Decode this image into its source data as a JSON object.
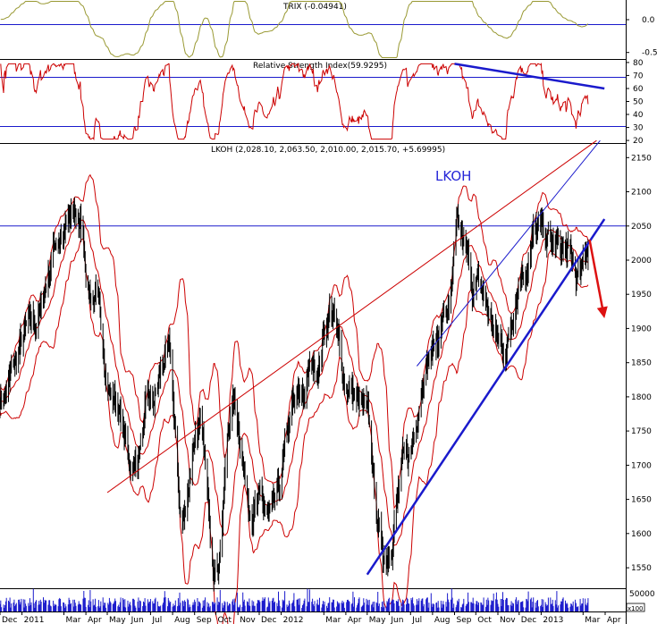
{
  "chart_data": {
    "type": "candlestick",
    "ticker_label": "LKOH",
    "panels": {
      "trix": {
        "title": "TRIX (-0.04941)",
        "y_ticks": [
          0.0,
          -0.5
        ],
        "y_tick_labels": [
          "0.0",
          "-0.5"
        ],
        "ylim": [
          -0.6,
          0.3
        ],
        "reference_line": 0.0
      },
      "rsi": {
        "title": "Relative Strength Index(59.9295)",
        "y_ticks": [
          80,
          70,
          60,
          50,
          40,
          30,
          20
        ],
        "y_tick_labels": [
          "80",
          "70",
          "60",
          "50",
          "40",
          "30",
          "20"
        ],
        "ylim": [
          18,
          82
        ],
        "reference_lines": [
          70,
          30
        ],
        "trendline": {
          "from": [
            "2012-09-01",
            79
          ],
          "to": [
            "2013-03-31",
            60
          ]
        }
      },
      "price": {
        "title": "LKOH (2,028.10, 2,063.50, 2,010.00, 2,015.70, +5.69995)",
        "y_ticks": [
          2150,
          2100,
          2050,
          2000,
          1950,
          1900,
          1850,
          1800,
          1750,
          1700,
          1650,
          1600,
          1550
        ],
        "y_tick_labels": [
          "2150",
          "2100",
          "2050",
          "2000",
          "1950",
          "1900",
          "1850",
          "1800",
          "1750",
          "1700",
          "1650",
          "1600",
          "1550"
        ],
        "ylim": [
          1520,
          2170
        ],
        "horizontal_line": 2050,
        "trendlines": [
          {
            "name": "red-resistance",
            "from": [
              "2011-05-01",
              1660
            ],
            "to": [
              "2013-03-20",
              2175
            ]
          },
          {
            "name": "blue-support",
            "from": [
              "2012-05-01",
              1540
            ],
            "to": [
              "2013-03-31",
              2060
            ]
          },
          {
            "name": "blue-channel-upper",
            "from": [
              "2012-07-10",
              1845
            ],
            "to": [
              "2013-03-25",
              2175
            ]
          }
        ],
        "arrow": {
          "from": [
            "2013-03-10",
            2030
          ],
          "to": [
            "2013-03-31",
            1915
          ]
        },
        "key_points": [
          {
            "date": "2010-12-01",
            "close": 1800
          },
          {
            "date": "2011-01-15",
            "close": 1900
          },
          {
            "date": "2011-02-25",
            "close": 2040
          },
          {
            "date": "2011-03-20",
            "close": 2060
          },
          {
            "date": "2011-04-10",
            "close": 1950
          },
          {
            "date": "2011-05-10",
            "close": 1800
          },
          {
            "date": "2011-06-05",
            "close": 1700
          },
          {
            "date": "2011-07-01",
            "close": 1780
          },
          {
            "date": "2011-07-25",
            "close": 1860
          },
          {
            "date": "2011-08-15",
            "close": 1620
          },
          {
            "date": "2011-09-05",
            "close": 1760
          },
          {
            "date": "2011-10-01",
            "close": 1560
          },
          {
            "date": "2011-10-25",
            "close": 1790
          },
          {
            "date": "2011-11-20",
            "close": 1650
          },
          {
            "date": "2011-12-20",
            "close": 1620
          },
          {
            "date": "2012-01-20",
            "close": 1780
          },
          {
            "date": "2012-02-20",
            "close": 1850
          },
          {
            "date": "2012-03-10",
            "close": 1930
          },
          {
            "date": "2012-04-01",
            "close": 1820
          },
          {
            "date": "2012-04-25",
            "close": 1780
          },
          {
            "date": "2012-05-25",
            "close": 1570
          },
          {
            "date": "2012-06-25",
            "close": 1700
          },
          {
            "date": "2012-07-25",
            "close": 1860
          },
          {
            "date": "2012-08-25",
            "close": 1930
          },
          {
            "date": "2012-09-05",
            "close": 2030
          },
          {
            "date": "2012-10-01",
            "close": 1960
          },
          {
            "date": "2012-11-10",
            "close": 1870
          },
          {
            "date": "2012-12-05",
            "close": 1990
          },
          {
            "date": "2012-12-25",
            "close": 2040
          },
          {
            "date": "2013-02-01",
            "close": 2010
          },
          {
            "date": "2013-02-25",
            "close": 1970
          },
          {
            "date": "2013-03-08",
            "close": 2015
          }
        ]
      },
      "volume": {
        "y_tick_labels": [
          "50000",
          "x100"
        ]
      }
    },
    "x_axis": {
      "range": [
        "2010-12-01",
        "2013-04-30"
      ],
      "ticks": [
        {
          "label": "Dec",
          "date": "2010-12-01"
        },
        {
          "label": "2011",
          "date": "2011-01-01"
        },
        {
          "label": "Mar",
          "date": "2011-03-01"
        },
        {
          "label": "Apr",
          "date": "2011-04-01"
        },
        {
          "label": "May",
          "date": "2011-05-01"
        },
        {
          "label": "Jun",
          "date": "2011-06-01"
        },
        {
          "label": "Jul",
          "date": "2011-07-01"
        },
        {
          "label": "Aug",
          "date": "2011-08-01"
        },
        {
          "label": "Sep",
          "date": "2011-09-01"
        },
        {
          "label": "Oct",
          "date": "2011-10-01"
        },
        {
          "label": "Nov",
          "date": "2011-11-01"
        },
        {
          "label": "Dec",
          "date": "2011-12-01"
        },
        {
          "label": "2012",
          "date": "2012-01-01"
        },
        {
          "label": "Mar",
          "date": "2012-03-01"
        },
        {
          "label": "Apr",
          "date": "2012-04-01"
        },
        {
          "label": "May",
          "date": "2012-05-01"
        },
        {
          "label": "Jun",
          "date": "2012-06-01"
        },
        {
          "label": "Jul",
          "date": "2012-07-01"
        },
        {
          "label": "Aug",
          "date": "2012-08-01"
        },
        {
          "label": "Sep",
          "date": "2012-09-01"
        },
        {
          "label": "Oct",
          "date": "2012-10-01"
        },
        {
          "label": "Nov",
          "date": "2012-11-01"
        },
        {
          "label": "Dec",
          "date": "2012-12-01"
        },
        {
          "label": "2013",
          "date": "2013-01-01"
        },
        {
          "label": "Mar",
          "date": "2013-03-01"
        },
        {
          "label": "Apr",
          "date": "2013-04-01"
        }
      ]
    },
    "colors": {
      "price_bars": "#000000",
      "bands": "#cc0000",
      "rsi_line": "#cc0000",
      "trix_line": "#999933",
      "trend_blue": "#1a1acc",
      "trend_red": "#cc0000",
      "volume": "#1a1acc",
      "ref_lines": "#1a1acc"
    }
  }
}
